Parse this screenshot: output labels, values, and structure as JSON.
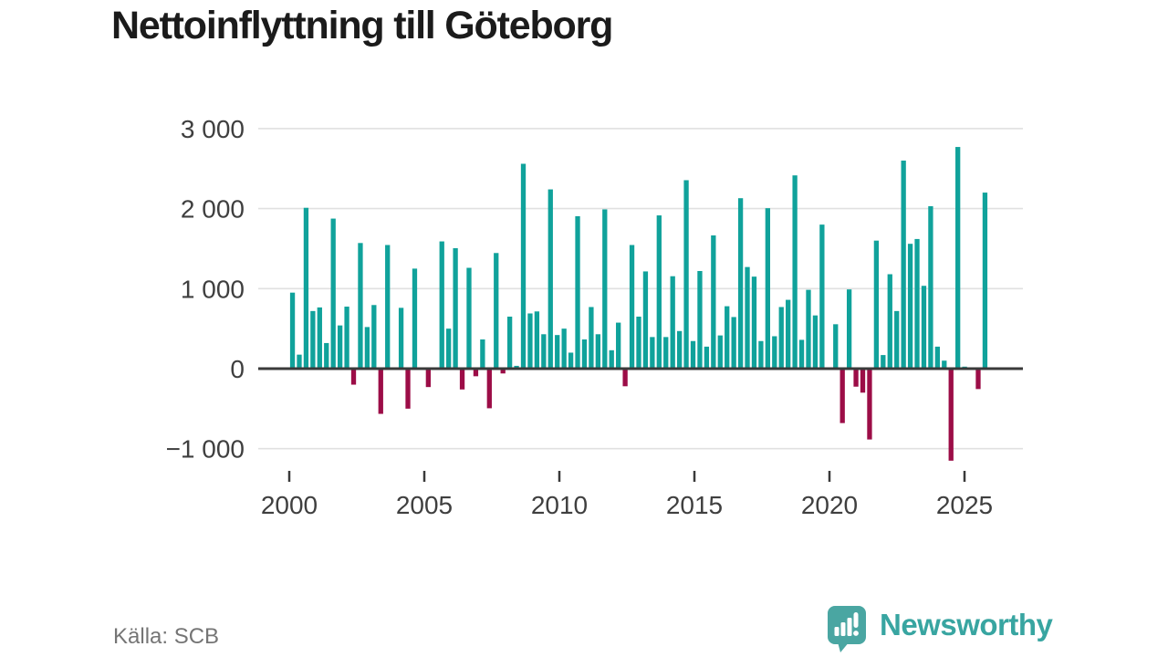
{
  "title": "Nettoinflyttning till Göteborg",
  "source": "Källa: SCB",
  "branding": {
    "logo_text": "Newsworthy",
    "logo_icon": "newsworthy-speech-bubble-bar-chart-icon"
  },
  "colors": {
    "bar_positive": "#10a29b",
    "bar_negative": "#9c0d47",
    "gridline": "#e0e0e0",
    "axis": "#3a3a3a",
    "axis_text": "#3f3f3f",
    "title_text": "#1b1b1b",
    "source_text": "#757575",
    "logo_teal": "#4aa6a2"
  },
  "chart_data": {
    "type": "bar",
    "title": "Nettoinflyttning till Göteborg",
    "frequency": "quarterly",
    "start": "2000 Q1",
    "end": "2025 Q3",
    "ylim": [
      -1150,
      3000
    ],
    "grid": true,
    "y_ticks": [
      "3 000",
      "2 000",
      "1 000",
      "0",
      "−1 000"
    ],
    "y_tick_values": [
      3000,
      2000,
      1000,
      0,
      -1000
    ],
    "x_ticks": [
      "2000",
      "2005",
      "2010",
      "2015",
      "2020",
      "2025"
    ],
    "x_tick_values": [
      2000,
      2005,
      2010,
      2015,
      2020,
      2025
    ],
    "series": [
      {
        "name": "Nettoinflyttning",
        "positive_color": "#10a29b",
        "negative_color": "#9c0d47",
        "values": [
          950,
          175,
          2010,
          720,
          765,
          320,
          1875,
          540,
          775,
          -200,
          1570,
          520,
          795,
          -565,
          1545,
          0,
          760,
          -500,
          1250,
          0,
          -230,
          0,
          1590,
          500,
          1505,
          -260,
          1260,
          -95,
          365,
          -495,
          1445,
          -60,
          650,
          35,
          2560,
          690,
          715,
          430,
          2240,
          420,
          500,
          200,
          1905,
          365,
          770,
          430,
          1990,
          230,
          575,
          -220,
          1545,
          650,
          1215,
          395,
          1915,
          395,
          1155,
          470,
          2355,
          345,
          1220,
          275,
          1665,
          415,
          780,
          645,
          2130,
          1270,
          1150,
          345,
          2005,
          405,
          770,
          860,
          2415,
          360,
          985,
          665,
          1800,
          0,
          555,
          -680,
          990,
          -225,
          -300,
          -885,
          1600,
          170,
          1180,
          720,
          2600,
          1560,
          1620,
          1035,
          2030,
          275,
          100,
          -1150,
          2770,
          25,
          0,
          -255,
          2200
        ]
      }
    ]
  }
}
